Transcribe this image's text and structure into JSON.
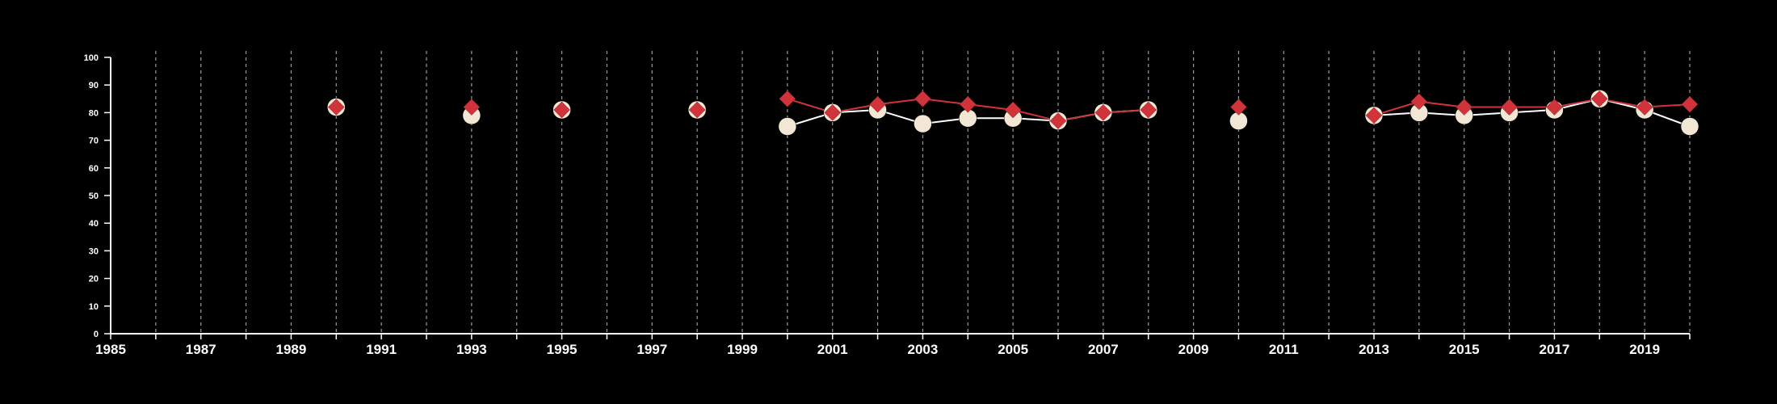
{
  "chart_data": {
    "type": "line",
    "title": "",
    "xlabel": "",
    "ylabel": "",
    "xlim": [
      1985,
      2020
    ],
    "ylim": [
      0,
      100
    ],
    "y_ticks": [
      "0",
      "10",
      "20",
      "30",
      "40",
      "50",
      "60",
      "70",
      "80",
      "90",
      "100"
    ],
    "x_tick_labels": [
      "1985",
      "1987",
      "1989",
      "1991",
      "1993",
      "1995",
      "1997",
      "1999",
      "2001",
      "2003",
      "2005",
      "2007",
      "2009",
      "2011",
      "2013",
      "2015",
      "2017",
      "2019"
    ],
    "vertical_gridlines": "dashed, every year",
    "legend": "none",
    "background_color": "#000000",
    "series": [
      {
        "marker": "circle",
        "color": "#f2e6d4",
        "line_color": "#ffffff",
        "points": [
          [
            1990,
            82
          ],
          [
            1993,
            79
          ],
          [
            1995,
            81
          ],
          [
            1998,
            81
          ],
          [
            2000,
            75
          ],
          [
            2001,
            80
          ],
          [
            2002,
            81
          ],
          [
            2003,
            76
          ],
          [
            2004,
            78
          ],
          [
            2005,
            78
          ],
          [
            2006,
            77
          ],
          [
            2007,
            80
          ],
          [
            2008,
            81
          ],
          [
            2010,
            77
          ],
          [
            2013,
            79
          ],
          [
            2014,
            80
          ],
          [
            2015,
            79
          ],
          [
            2016,
            80
          ],
          [
            2017,
            81
          ],
          [
            2018,
            85
          ],
          [
            2019,
            81
          ],
          [
            2020,
            75
          ]
        ]
      },
      {
        "marker": "diamond",
        "color": "#d0343a",
        "line_color": "#d0343a",
        "points": [
          [
            1990,
            82
          ],
          [
            1993,
            82
          ],
          [
            1995,
            81
          ],
          [
            1998,
            81
          ],
          [
            2000,
            85
          ],
          [
            2001,
            80
          ],
          [
            2002,
            83
          ],
          [
            2003,
            85
          ],
          [
            2004,
            83
          ],
          [
            2005,
            81
          ],
          [
            2006,
            77
          ],
          [
            2007,
            80
          ],
          [
            2008,
            81
          ],
          [
            2010,
            82
          ],
          [
            2013,
            79
          ],
          [
            2014,
            84
          ],
          [
            2015,
            82
          ],
          [
            2016,
            82
          ],
          [
            2017,
            82
          ],
          [
            2018,
            85
          ],
          [
            2019,
            82
          ],
          [
            2020,
            83
          ]
        ]
      }
    ]
  }
}
